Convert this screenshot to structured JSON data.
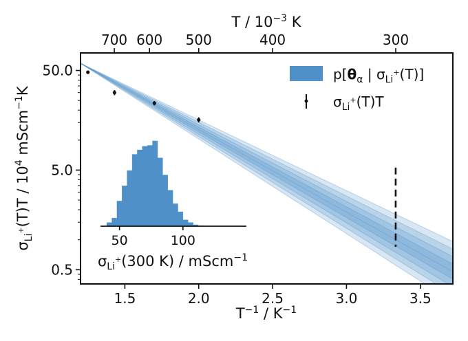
{
  "chart_data": [
    {
      "type": "line",
      "xlabel": "T⁻¹ / K⁻¹",
      "ylabel": "σLi⁺(T)T / 10⁴ mScm⁻¹K",
      "top_xlabel": "T / 10⁻³ K",
      "xlim": [
        1.2,
        3.72
      ],
      "ylim": [
        0.36,
        75
      ],
      "yscale": "log",
      "x_ticks": [
        "1.5",
        "2.0",
        "2.5",
        "3.0",
        "3.5"
      ],
      "x_tick_values": [
        1.5,
        2.0,
        2.5,
        3.0,
        3.5
      ],
      "y_ticks": [
        "0.5",
        "5.0",
        "50.0"
      ],
      "y_tick_values": [
        0.5,
        5.0,
        50.0
      ],
      "top_x_ticks": [
        "700",
        "600",
        "500",
        "400",
        "300"
      ],
      "top_x_tick_values": [
        700,
        600,
        500,
        400,
        300
      ],
      "grid": false,
      "legend_placement": "top-right",
      "legend": {
        "band_label": "p[θα | σLi⁺(T)]",
        "points_label": "σLi⁺(T)T"
      },
      "series": [
        {
          "name": "σLi⁺(T)T",
          "kind": "points_with_errorbars",
          "x": [
            1.25,
            1.43,
            1.7,
            2.0
          ],
          "y": [
            48.0,
            30.0,
            23.5,
            16.0
          ],
          "yerr_rel": [
            0.04,
            0.06,
            0.05,
            0.06
          ]
        },
        {
          "name": "p[θα | σLi⁺(T)]",
          "kind": "posterior_band",
          "x_anchor": 1.2,
          "y_anchor": 59.0,
          "slope_samples": [
            -0.71,
            -0.74,
            -0.77,
            -0.8,
            -0.83,
            -0.86,
            -0.89,
            -0.92,
            -0.95
          ]
        },
        {
          "name": "extrapolation at 300 K",
          "kind": "dashed_errorbar",
          "x": 3.333,
          "y_low": 0.85,
          "y_high": 5.3
        }
      ],
      "color": "#4f90c8"
    },
    {
      "type": "bar",
      "chart": "inset histogram",
      "xlabel": "σLi⁺(300 K) / mScm⁻¹",
      "x_ticks": [
        "50",
        "100"
      ],
      "x_tick_values": [
        50,
        100
      ],
      "xlim": [
        35,
        150
      ],
      "bin_start": 40,
      "bin_width": 4,
      "counts": [
        0.04,
        0.09,
        0.28,
        0.45,
        0.62,
        0.8,
        0.85,
        0.89,
        0.9,
        0.95,
        0.76,
        0.57,
        0.4,
        0.25,
        0.16,
        0.07,
        0.04,
        0.015,
        0.006
      ],
      "color": "#4f90c8"
    }
  ]
}
